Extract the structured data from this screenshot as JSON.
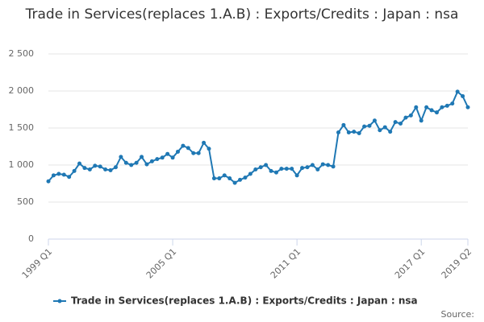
{
  "chart_data": {
    "type": "line",
    "title": "Trade in Services(replaces 1.A.B) : Exports/Credits : Japan : nsa",
    "categories": [
      "1999 Q1",
      null,
      null,
      null,
      null,
      null,
      null,
      null,
      null,
      null,
      null,
      null,
      null,
      null,
      null,
      null,
      null,
      null,
      null,
      null,
      null,
      null,
      null,
      null,
      "2005 Q1",
      null,
      null,
      null,
      null,
      null,
      null,
      null,
      null,
      null,
      null,
      null,
      null,
      null,
      null,
      null,
      null,
      null,
      null,
      null,
      null,
      null,
      null,
      null,
      "2011 Q1",
      null,
      null,
      null,
      null,
      null,
      null,
      null,
      null,
      null,
      null,
      null,
      null,
      null,
      null,
      null,
      null,
      null,
      null,
      null,
      null,
      null,
      null,
      null,
      "2017 Q1",
      null,
      null,
      null,
      null,
      null,
      null,
      null,
      null,
      "2019 Q2"
    ],
    "series": [
      {
        "name": "Trade in Services(replaces 1.A.B) : Exports/Credits : Japan : nsa",
        "color": "#1f78b4",
        "values": [
          780,
          860,
          880,
          870,
          840,
          920,
          1020,
          960,
          940,
          990,
          980,
          940,
          930,
          970,
          1110,
          1030,
          1000,
          1030,
          1110,
          1010,
          1050,
          1080,
          1100,
          1150,
          1100,
          1180,
          1260,
          1230,
          1160,
          1160,
          1300,
          1220,
          820,
          820,
          860,
          820,
          760,
          800,
          830,
          880,
          940,
          970,
          1000,
          920,
          900,
          950,
          950,
          950,
          860,
          960,
          970,
          1000,
          940,
          1010,
          1000,
          980,
          1440,
          1540,
          1440,
          1450,
          1430,
          1520,
          1530,
          1600,
          1470,
          1510,
          1450,
          1580,
          1560,
          1640,
          1670,
          1780,
          1600,
          1780,
          1740,
          1710,
          1780,
          1800,
          1830,
          1990,
          1930,
          1780
        ]
      }
    ],
    "ylim": [
      0,
      2500
    ],
    "yticks": [
      0,
      500,
      {
        "value": 1000,
        "label": "1 000"
      },
      {
        "value": 1500,
        "label": "1 500"
      },
      {
        "value": 2000,
        "label": "2 000"
      },
      {
        "value": 2500,
        "label": "2 500"
      }
    ],
    "grid": true,
    "source": "Source:"
  }
}
